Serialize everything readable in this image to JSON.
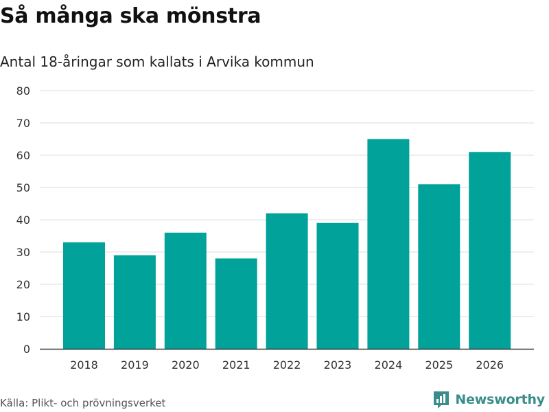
{
  "title": "Så många ska mönstra",
  "subtitle": "Antal 18-åringar som kallats i Arvika kommun",
  "source": "Källa: Plikt- och prövningsverket",
  "brand": "Newsworthy",
  "colors": {
    "bar": "#00a29a",
    "grid": "#dddddd",
    "axis": "#333333",
    "brand": "#3a8d8b"
  },
  "chart_data": {
    "type": "bar",
    "title": "Så många ska mönstra",
    "subtitle": "Antal 18-åringar som kallats i Arvika kommun",
    "xlabel": "",
    "ylabel": "",
    "categories": [
      "2018",
      "2019",
      "2020",
      "2021",
      "2022",
      "2023",
      "2024",
      "2025",
      "2026"
    ],
    "values": [
      33,
      29,
      36,
      28,
      42,
      39,
      65,
      51,
      61
    ],
    "ylim": [
      0,
      80
    ],
    "yticks": [
      0,
      10,
      20,
      30,
      40,
      50,
      60,
      70,
      80
    ],
    "grid": true,
    "legend": "none"
  }
}
